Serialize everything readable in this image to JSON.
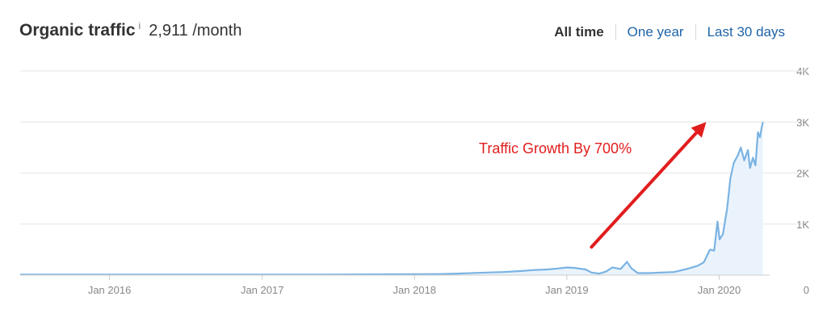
{
  "header": {
    "title": "Organic traffic",
    "info_glyph": "i",
    "value": "2,911 /month"
  },
  "ranges": [
    {
      "label": "All time",
      "active": true
    },
    {
      "label": "One year",
      "active": false
    },
    {
      "label": "Last 30 days",
      "active": false
    }
  ],
  "colors": {
    "line": "#7ab3e3",
    "area": "#eaf3fc",
    "arrow": "#e11d1d",
    "grid": "#e6e6e6",
    "axis": "#cccccc"
  },
  "chart_data": {
    "type": "area",
    "x_tick_labels": [
      "Jan 2016",
      "Jan 2017",
      "Jan 2018",
      "Jan 2019",
      "Jan 2020"
    ],
    "x_ticks": [
      "2016-01-01",
      "2017-01-01",
      "2018-01-01",
      "2019-01-01",
      "2020-01-01"
    ],
    "y_tick_labels": [
      "0",
      "1K",
      "2K",
      "3K",
      "4K"
    ],
    "y_ticks": [
      0,
      1000,
      2000,
      3000,
      4000
    ],
    "ylim": [
      0,
      4000
    ],
    "xlim": [
      "2015-06-01",
      "2020-05-01"
    ],
    "grid": true,
    "axis_side": "right",
    "series": [
      {
        "points": [
          [
            "2015-06-01",
            10
          ],
          [
            "2016-06-01",
            10
          ],
          [
            "2017-06-01",
            10
          ],
          [
            "2018-03-01",
            20
          ],
          [
            "2018-04-15",
            30
          ],
          [
            "2018-06-01",
            45
          ],
          [
            "2018-08-01",
            60
          ],
          [
            "2018-09-15",
            80
          ],
          [
            "2018-10-15",
            100
          ],
          [
            "2018-11-15",
            110
          ],
          [
            "2018-12-10",
            130
          ],
          [
            "2019-01-01",
            150
          ],
          [
            "2019-01-20",
            140
          ],
          [
            "2019-02-15",
            110
          ],
          [
            "2019-03-01",
            50
          ],
          [
            "2019-03-20",
            30
          ],
          [
            "2019-04-05",
            70
          ],
          [
            "2019-04-20",
            150
          ],
          [
            "2019-05-10",
            120
          ],
          [
            "2019-05-25",
            260
          ],
          [
            "2019-06-05",
            130
          ],
          [
            "2019-06-20",
            40
          ],
          [
            "2019-07-15",
            40
          ],
          [
            "2019-09-15",
            60
          ],
          [
            "2019-10-15",
            120
          ],
          [
            "2019-11-10",
            180
          ],
          [
            "2019-11-25",
            250
          ],
          [
            "2019-12-10",
            500
          ],
          [
            "2019-12-20",
            480
          ],
          [
            "2019-12-28",
            1050
          ],
          [
            "2020-01-02",
            700
          ],
          [
            "2020-01-10",
            800
          ],
          [
            "2020-01-20",
            1300
          ],
          [
            "2020-01-28",
            1900
          ],
          [
            "2020-02-05",
            2200
          ],
          [
            "2020-02-15",
            2350
          ],
          [
            "2020-02-22",
            2500
          ],
          [
            "2020-03-01",
            2250
          ],
          [
            "2020-03-10",
            2450
          ],
          [
            "2020-03-15",
            2100
          ],
          [
            "2020-03-22",
            2300
          ],
          [
            "2020-03-28",
            2150
          ],
          [
            "2020-04-03",
            2800
          ],
          [
            "2020-04-08",
            2700
          ],
          [
            "2020-04-12",
            2900
          ],
          [
            "2020-04-15",
            3000
          ]
        ]
      }
    ],
    "annotations": [
      {
        "text": "Traffic Growth By 700%",
        "arrow_from": [
          "2019-03-01",
          550
        ],
        "arrow_to": [
          "2019-12-01",
          3000
        ]
      }
    ]
  }
}
